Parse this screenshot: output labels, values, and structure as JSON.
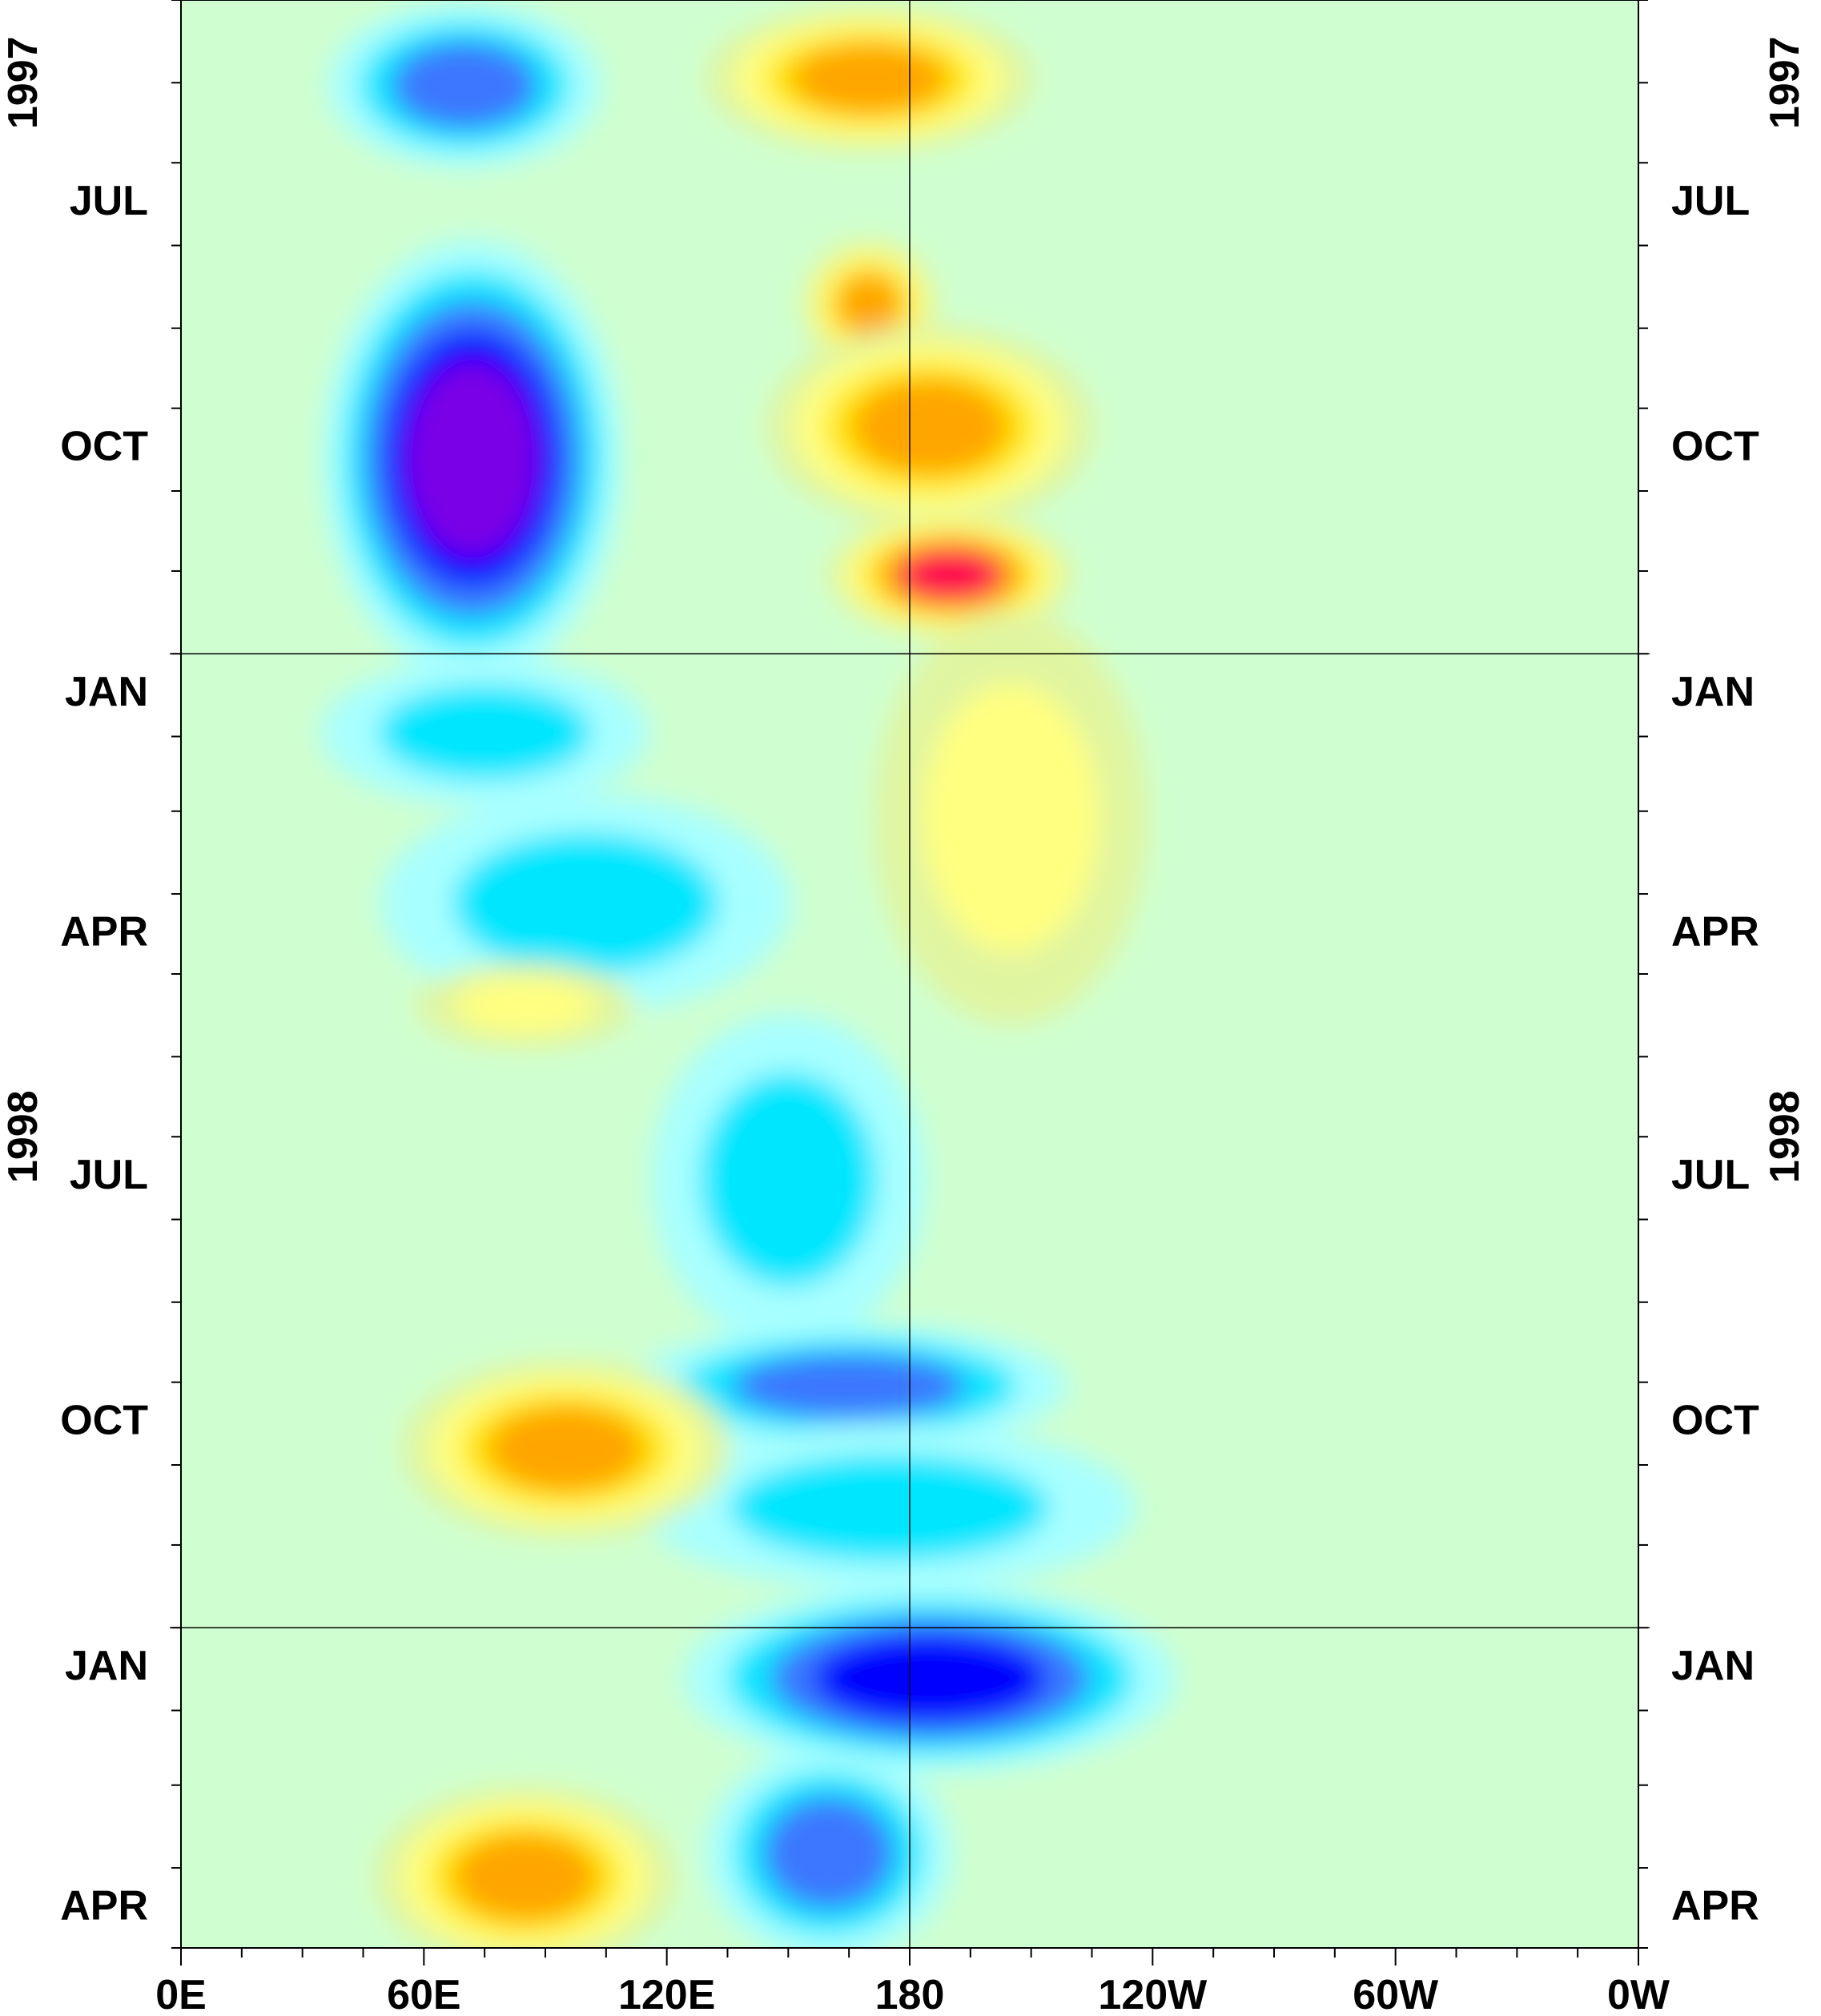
{
  "chart_data": {
    "type": "heatmap",
    "title": "",
    "xlabel": "",
    "ylabel": "",
    "x_axis": {
      "tick_labels": [
        "0E",
        "60E",
        "120E",
        "180",
        "120W",
        "60W",
        "0W"
      ],
      "range_deg_east": [
        0,
        360
      ],
      "minor_tick_step_deg": 15
    },
    "y_axis": {
      "direction": "time increases downward",
      "range": [
        "1997-05-01",
        "1999-05-01"
      ],
      "month_labels": [
        {
          "label": "JUL",
          "date": "1997-07-15"
        },
        {
          "label": "OCT",
          "date": "1997-10-15"
        },
        {
          "label": "JAN",
          "date": "1998-01-15"
        },
        {
          "label": "APR",
          "date": "1998-04-15"
        },
        {
          "label": "JUL",
          "date": "1998-07-15"
        },
        {
          "label": "OCT",
          "date": "1998-10-15"
        },
        {
          "label": "JAN",
          "date": "1999-01-15"
        },
        {
          "label": "APR",
          "date": "1999-04-15"
        }
      ],
      "year_labels": [
        {
          "label": "1997",
          "date": "1997-06-01"
        },
        {
          "label": "1998",
          "date": "1998-07-01"
        }
      ],
      "year_boundaries": [
        "1998-01-01",
        "1999-01-01"
      ]
    },
    "reference_line_lon": 180,
    "grid": false,
    "legend": "none",
    "color_levels": [
      "#7a00e6",
      "#0000ff",
      "#3a78ff",
      "#00e6ff",
      "#a8ffff",
      "#cfffd0",
      "#e0f5a0",
      "#ffff80",
      "#ffe600",
      "#ffa500",
      "#ff0050"
    ],
    "features": [
      {
        "lon": 70,
        "lon_span": 50,
        "start": "1997-05-10",
        "end": "1997-06-25",
        "level": -3
      },
      {
        "lon": 72,
        "lon_span": 55,
        "start": "1997-08-20",
        "end": "1997-12-20",
        "level": -5
      },
      {
        "lon": 75,
        "lon_span": 60,
        "start": "1998-01-10",
        "end": "1998-02-20",
        "level": -2
      },
      {
        "lon": 100,
        "lon_span": 75,
        "start": "1998-03-05",
        "end": "1998-05-05",
        "level": -2
      },
      {
        "lon": 150,
        "lon_span": 50,
        "start": "1998-06-01",
        "end": "1998-09-01",
        "level": -2
      },
      {
        "lon": 165,
        "lon_span": 80,
        "start": "1998-09-15",
        "end": "1998-10-20",
        "level": -3
      },
      {
        "lon": 175,
        "lon_span": 90,
        "start": "1998-10-25",
        "end": "1998-12-10",
        "level": -2
      },
      {
        "lon": 185,
        "lon_span": 90,
        "start": "1998-12-25",
        "end": "1999-02-15",
        "level": -4
      },
      {
        "lon": 160,
        "lon_span": 45,
        "start": "1999-02-25",
        "end": "1999-04-25",
        "level": -3
      },
      {
        "lon": 170,
        "lon_span": 60,
        "start": "1997-05-10",
        "end": "1997-06-20",
        "level": 4
      },
      {
        "lon": 170,
        "lon_span": 25,
        "start": "1997-08-05",
        "end": "1997-09-10",
        "level": 4
      },
      {
        "lon": 185,
        "lon_span": 60,
        "start": "1997-09-10",
        "end": "1997-11-05",
        "level": 4
      },
      {
        "lon": 190,
        "lon_span": 45,
        "start": "1997-11-15",
        "end": "1997-12-20",
        "level": 5
      },
      {
        "lon": 205,
        "lon_span": 50,
        "start": "1998-01-05",
        "end": "1998-04-30",
        "level": 2
      },
      {
        "lon": 85,
        "lon_span": 40,
        "start": "1998-05-01",
        "end": "1998-05-25",
        "level": 2
      },
      {
        "lon": 95,
        "lon_span": 60,
        "start": "1998-10-01",
        "end": "1998-11-20",
        "level": 4
      },
      {
        "lon": 85,
        "lon_span": 55,
        "start": "1999-03-10",
        "end": "1999-04-30",
        "level": 4
      }
    ]
  },
  "labels": {
    "year_top_left": "1997",
    "year_top_right": "1997",
    "year_mid_left": "1998",
    "year_mid_right": "1998"
  }
}
